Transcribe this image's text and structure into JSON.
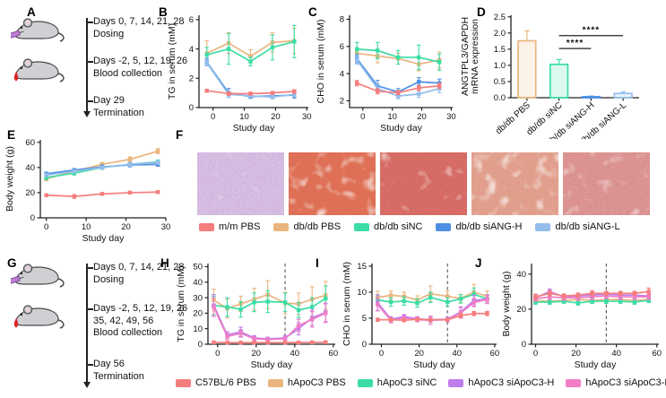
{
  "panels": {
    "a": "A",
    "b": "B",
    "c": "C",
    "d": "D",
    "e": "E",
    "f": "F",
    "g": "G",
    "h": "H",
    "i": "I",
    "j": "J"
  },
  "panel_a": {
    "events": [
      {
        "icon": "mouse-syringe-icon",
        "lines": [
          "Days 0, 7, 14, 21, 28",
          "Dosing"
        ]
      },
      {
        "icon": "mouse-blood-drop-icon",
        "lines": [
          "Days -2, 5, 12, 19, 26",
          "Blood collection"
        ]
      },
      {
        "icon": "arrow-down-icon",
        "lines": [
          "Day 29",
          "Termination"
        ]
      }
    ]
  },
  "panel_g": {
    "events": [
      {
        "icon": "mouse-syringe-icon",
        "lines": [
          "Days 0, 7, 14, 21, 28",
          "Dosing"
        ]
      },
      {
        "icon": "mouse-blood-drop-icon",
        "lines": [
          "Days -2, 5, 12, 19, 26",
          "35, 42, 49, 56",
          "Blood collection"
        ]
      },
      {
        "icon": "arrow-down-icon",
        "lines": [
          "Day 56",
          "Termination"
        ]
      }
    ]
  },
  "panel_f": {
    "images": [
      {
        "base": "#D8C3E2",
        "speck": "#9A66B8",
        "speck_gain": 1.6,
        "speck_bias": -0.5,
        "patch_gain": 2.0,
        "patch_bias": -1.4
      },
      {
        "base": "#DD6F50",
        "speck": "#C22B1F",
        "speck_gain": 1.7,
        "speck_bias": -0.5,
        "patch_gain": 2.4,
        "patch_bias": -1.3
      },
      {
        "base": "#D5685F",
        "speck": "#B32C2C",
        "speck_gain": 1.6,
        "speck_bias": -0.5,
        "patch_gain": 2.2,
        "patch_bias": -1.45
      },
      {
        "base": "#E09C88",
        "speck": "#C4604F",
        "speck_gain": 1.6,
        "speck_bias": -0.52,
        "patch_gain": 2.4,
        "patch_bias": -1.3
      },
      {
        "base": "#DA8D89",
        "speck": "#BB5A60",
        "speck_gain": 1.6,
        "speck_bias": -0.52,
        "patch_gain": 2.2,
        "patch_bias": -1.4
      }
    ],
    "legend": [
      {
        "label": "m/m PBS",
        "color": "#F57D7D"
      },
      {
        "label": "db/db PBS",
        "color": "#EAB57E"
      },
      {
        "label": "db/db siNC",
        "color": "#3BDDA4"
      },
      {
        "label": "db/db siANG-H",
        "color": "#4D8FE3"
      },
      {
        "label": "db/db siANG-L",
        "color": "#93BEEC"
      }
    ]
  },
  "bottom_legend": [
    {
      "label": "C57BL/6 PBS",
      "color": "#F57D7D"
    },
    {
      "label": "hApoC3 PBS",
      "color": "#EAB57E"
    },
    {
      "label": "hApoC3 siNC",
      "color": "#3BDDA4"
    },
    {
      "label": "hApoC3 siApoC3-H",
      "color": "#C07DEE"
    },
    {
      "label": "hApoC3 siApoC3-L",
      "color": "#EF7EC6"
    }
  ],
  "chart_data": [
    {
      "panel": "B",
      "type": "line",
      "ylabel": "TG in serum (mM)",
      "xlabel": "Study day",
      "xlim": [
        -4.5,
        30.5
      ],
      "ylim": [
        0,
        6.3
      ],
      "xticks": [
        0,
        10,
        20,
        30
      ],
      "yticks": [
        0,
        2,
        4,
        6
      ],
      "x": [
        -2,
        5,
        12,
        19,
        26
      ],
      "series": [
        {
          "name": "db/db PBS",
          "color": "#EAB57E",
          "values": [
            3.7,
            4.4,
            3.5,
            4.45,
            4.55
          ],
          "err": [
            0.85,
            0.7,
            0.45,
            0.65,
            0.85
          ]
        },
        {
          "name": "db/db siNC",
          "color": "#3BDDA4",
          "values": [
            3.6,
            4.0,
            3.15,
            4.1,
            4.5
          ],
          "err": [
            0.5,
            1.05,
            0.3,
            0.85,
            1.1
          ]
        },
        {
          "name": "db/db siANG-H",
          "color": "#4D8FE3",
          "values": [
            3.1,
            1.0,
            0.75,
            0.8,
            0.85
          ],
          "err": [
            0.25,
            0.3,
            0.12,
            0.12,
            0.2
          ]
        },
        {
          "name": "db/db siANG-L",
          "color": "#93BEEC",
          "values": [
            3.05,
            0.9,
            0.8,
            0.72,
            0.9
          ],
          "err": [
            0.2,
            0.2,
            0.12,
            0.12,
            0.15
          ]
        },
        {
          "name": "m/m PBS",
          "color": "#F57D7D",
          "values": [
            1.15,
            0.95,
            0.95,
            1.0,
            1.1
          ],
          "err": [
            0.1,
            0.12,
            0.1,
            0.1,
            0.12
          ]
        }
      ]
    },
    {
      "panel": "C",
      "type": "line",
      "ylabel": "CHO in serum (mM)",
      "xlabel": "Study day",
      "xlim": [
        -4.5,
        30.5
      ],
      "ylim": [
        1.5,
        8.3
      ],
      "xticks": [
        0,
        10,
        20,
        30
      ],
      "yticks": [
        2,
        4,
        6,
        8
      ],
      "x": [
        -2,
        5,
        12,
        19,
        26
      ],
      "series": [
        {
          "name": "db/db PBS",
          "color": "#EAB57E",
          "values": [
            5.5,
            5.3,
            5.1,
            4.7,
            5.0
          ],
          "err": [
            0.4,
            0.5,
            0.4,
            0.5,
            0.6
          ]
        },
        {
          "name": "db/db siNC",
          "color": "#3BDDA4",
          "values": [
            5.8,
            5.7,
            5.2,
            5.2,
            4.85
          ],
          "err": [
            0.5,
            0.6,
            0.5,
            0.9,
            0.6
          ]
        },
        {
          "name": "db/db siANG-H",
          "color": "#4D8FE3",
          "values": [
            5.1,
            3.1,
            2.65,
            3.4,
            3.3
          ],
          "err": [
            0.3,
            0.4,
            0.25,
            0.3,
            0.3
          ]
        },
        {
          "name": "db/db siANG-L",
          "color": "#93BEEC",
          "values": [
            5.0,
            2.9,
            2.35,
            2.5,
            2.9
          ],
          "err": [
            0.3,
            0.3,
            0.2,
            0.25,
            0.3
          ]
        },
        {
          "name": "m/m PBS",
          "color": "#F57D7D",
          "values": [
            3.3,
            2.7,
            2.6,
            2.95,
            3.1
          ],
          "err": [
            0.2,
            0.2,
            0.15,
            0.2,
            0.2
          ]
        }
      ]
    },
    {
      "panel": "D",
      "type": "bar",
      "ylabel_lines": [
        "ANGTPL3/GAPDH",
        "mRNA expression"
      ],
      "categories": [
        "db/db PBS",
        "db/db siNC",
        "db/db siANG-H",
        "db/db siANG-L"
      ],
      "values": [
        1.76,
        1.03,
        0.03,
        0.13
      ],
      "err": [
        0.31,
        0.15,
        0.02,
        0.05
      ],
      "colors": [
        "#EAB57E",
        "#3BDDA4",
        "#4D8FE3",
        "#93BEEC"
      ],
      "ylim": [
        0,
        2.55
      ],
      "yticks": [
        "0.0",
        "0.5",
        "1.0",
        "1.5",
        "2.0",
        "2.5"
      ],
      "sig": [
        {
          "from": 1,
          "to": 2,
          "y": 1.52,
          "label": "****"
        },
        {
          "from": 1,
          "to": 3,
          "y": 1.92,
          "label": "****"
        }
      ]
    },
    {
      "panel": "E",
      "type": "line",
      "ylabel": "Body weight (g)",
      "xlabel": "Study day",
      "xlim": [
        -1.5,
        30
      ],
      "ylim": [
        0,
        62
      ],
      "xticks": [
        0,
        10,
        20,
        30
      ],
      "yticks": [
        0,
        20,
        40,
        60
      ],
      "x": [
        0,
        7,
        14,
        21,
        28
      ],
      "series": [
        {
          "name": "db/db PBS",
          "color": "#EAB57E",
          "values": [
            31,
            37,
            42.5,
            46.5,
            53
          ],
          "err": [
            1.5,
            1.5,
            1.5,
            2,
            2
          ]
        },
        {
          "name": "db/db siNC",
          "color": "#3BDDA4",
          "values": [
            32,
            35.5,
            40,
            42.5,
            44.5
          ],
          "err": [
            1.5,
            1.5,
            1.5,
            1.5,
            1.5
          ]
        },
        {
          "name": "db/db siANG-H",
          "color": "#4D8FE3",
          "values": [
            35,
            38,
            40.5,
            42,
            42.5
          ],
          "err": [
            1.2,
            1.2,
            1.5,
            1.5,
            1.5
          ]
        },
        {
          "name": "db/db siANG-L",
          "color": "#93BEEC",
          "values": [
            34,
            37,
            40,
            42.5,
            44
          ],
          "err": [
            1.2,
            1.2,
            1.2,
            1.5,
            1.5
          ]
        },
        {
          "name": "m/m PBS",
          "color": "#F57D7D",
          "values": [
            18,
            17,
            19,
            20,
            20.5
          ],
          "err": [
            1,
            1.5,
            1,
            1,
            1
          ]
        }
      ]
    },
    {
      "panel": "H",
      "type": "line",
      "ylabel": "TG in serum (mM)",
      "xlabel": "Study day",
      "vline": 35,
      "xlim": [
        -5,
        61
      ],
      "ylim": [
        0,
        52
      ],
      "xticks": [
        0,
        20,
        40,
        60
      ],
      "yticks": [
        0,
        10,
        20,
        30,
        40,
        50
      ],
      "x": [
        -2,
        5,
        12,
        19,
        26,
        35,
        42,
        49,
        56
      ],
      "series": [
        {
          "name": "hApoC3 PBS",
          "color": "#EAB57E",
          "values": [
            28.5,
            23,
            26,
            29,
            32,
            26.5,
            26,
            29,
            31.5
          ],
          "err": [
            7,
            6,
            5,
            7,
            9,
            7,
            7,
            8,
            9
          ]
        },
        {
          "name": "hApoC3 siNC",
          "color": "#3BDDA4",
          "values": [
            25,
            24,
            22.5,
            27,
            27.5,
            27,
            22,
            24,
            29.5
          ],
          "err": [
            6,
            6,
            5,
            6,
            7,
            6,
            5,
            6,
            8
          ]
        },
        {
          "name": "hApoC3 siApoC3-H",
          "color": "#C07DEE",
          "values": [
            25,
            6,
            8,
            4,
            3.5,
            4,
            10,
            17,
            20.5
          ],
          "err": [
            7,
            2,
            3,
            1.5,
            1,
            1.5,
            4,
            5,
            6
          ]
        },
        {
          "name": "hApoC3 siApoC3-L",
          "color": "#EF7EC6",
          "values": [
            24,
            5,
            7,
            3.5,
            3,
            3.5,
            12,
            16,
            20
          ],
          "err": [
            6,
            2,
            2.5,
            1.2,
            1,
            1.2,
            4,
            5,
            6
          ]
        },
        {
          "name": "C57BL/6 PBS",
          "color": "#F57D7D",
          "values": [
            1.2,
            1.0,
            1.0,
            1.0,
            1.0,
            1.0,
            1.1,
            1.2,
            1.3
          ],
          "err": [
            0.3,
            0.3,
            0.3,
            0.3,
            0.3,
            0.3,
            0.3,
            0.3,
            0.3
          ]
        }
      ]
    },
    {
      "panel": "I",
      "type": "line",
      "ylabel": "CHO in serum (mM)",
      "xlabel": "Study day",
      "vline": 35,
      "xlim": [
        -5,
        61
      ],
      "ylim": [
        0,
        15.5
      ],
      "xticks": [
        0,
        20,
        40,
        60
      ],
      "yticks": [
        0,
        5,
        10,
        15
      ],
      "x": [
        -2,
        5,
        12,
        19,
        26,
        35,
        42,
        49,
        56
      ],
      "series": [
        {
          "name": "hApoC3 PBS",
          "color": "#EAB57E",
          "values": [
            9.0,
            9.4,
            9.2,
            8.5,
            9.7,
            9.2,
            8.8,
            10.0,
            9.2
          ],
          "err": [
            1.2,
            0.8,
            0.8,
            0.8,
            1.5,
            1,
            0.8,
            1.5,
            1
          ]
        },
        {
          "name": "hApoC3 siNC",
          "color": "#3BDDA4",
          "values": [
            8.5,
            8.1,
            8.3,
            7.9,
            9.0,
            8.1,
            8.7,
            9.6,
            8.7
          ],
          "err": [
            1,
            0.8,
            0.8,
            0.8,
            1,
            0.8,
            0.8,
            1.2,
            0.8
          ]
        },
        {
          "name": "hApoC3 siApoC3-H",
          "color": "#C07DEE",
          "values": [
            8.0,
            4.8,
            5.3,
            4.9,
            4.7,
            4.8,
            6.2,
            8.4,
            8.7
          ],
          "err": [
            1.5,
            0.5,
            0.4,
            0.4,
            0.5,
            0.4,
            1,
            1,
            0.8
          ]
        },
        {
          "name": "hApoC3 siApoC3-L",
          "color": "#EF7EC6",
          "values": [
            7.6,
            4.6,
            5.0,
            4.7,
            4.6,
            4.7,
            6.0,
            8.0,
            8.6
          ],
          "err": [
            1.2,
            0.5,
            0.4,
            0.4,
            0.8,
            0.4,
            1,
            0.8,
            0.8
          ]
        },
        {
          "name": "C57BL/6 PBS",
          "color": "#F57D7D",
          "values": [
            4.7,
            4.7,
            4.6,
            4.8,
            4.7,
            4.7,
            5.5,
            5.9,
            5.9
          ],
          "err": [
            0.3,
            0.3,
            0.3,
            0.3,
            0.3,
            0.3,
            0.4,
            0.4,
            0.4
          ]
        }
      ]
    },
    {
      "panel": "J",
      "type": "line",
      "ylabel": "Body weight (g)",
      "xlabel": "Study day",
      "vline": 35,
      "xlim": [
        -2,
        61
      ],
      "ylim": [
        0,
        46
      ],
      "xticks": [
        0,
        20,
        40,
        60
      ],
      "yticks": [
        0,
        20,
        40
      ],
      "x": [
        0,
        7,
        14,
        21,
        28,
        35,
        42,
        49,
        56
      ],
      "series": [
        {
          "name": "hApoC3 PBS",
          "color": "#EAB57E",
          "values": [
            25,
            24.5,
            25,
            25.5,
            25,
            25.5,
            25.5,
            25,
            25.5
          ],
          "err": [
            1.5,
            1.5,
            1.2,
            1.2,
            1.5,
            1.2,
            1.2,
            1.2,
            1.5
          ]
        },
        {
          "name": "hApoC3 siNC",
          "color": "#3BDDA4",
          "values": [
            24,
            24,
            24.5,
            23.5,
            24.5,
            24.5,
            24.5,
            24,
            25
          ],
          "err": [
            1.2,
            1.2,
            1.2,
            1.2,
            1.2,
            1.2,
            1.2,
            1.2,
            1.2
          ]
        },
        {
          "name": "hApoC3 siApoC3-H",
          "color": "#C07DEE",
          "values": [
            26.5,
            30,
            27,
            27.5,
            28,
            28.5,
            28,
            28,
            27.5
          ],
          "err": [
            2,
            1.5,
            1.5,
            1.5,
            1.5,
            1.5,
            1.5,
            1.5,
            1.5
          ]
        },
        {
          "name": "hApoC3 siApoC3-L",
          "color": "#EF7EC6",
          "values": [
            26,
            27,
            26.5,
            26.5,
            27,
            27.5,
            27,
            27,
            27
          ],
          "err": [
            1.5,
            1.5,
            1.5,
            1.5,
            1.5,
            1.5,
            1.5,
            1.5,
            1.5
          ]
        },
        {
          "name": "C57BL/6 PBS",
          "color": "#F57D7D",
          "values": [
            27,
            29,
            27.5,
            28,
            29,
            29,
            29,
            29,
            30
          ],
          "err": [
            1.5,
            1.5,
            1.2,
            1.2,
            1.5,
            1.2,
            1.2,
            1.2,
            2
          ]
        }
      ]
    }
  ]
}
